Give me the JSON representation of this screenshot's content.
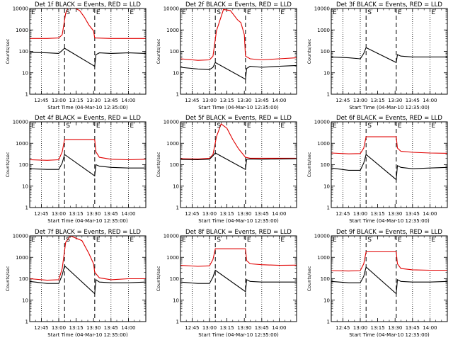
{
  "figure": {
    "colors": {
      "events": "#000000",
      "lld": "#e00000",
      "frame": "#000000",
      "background": "#ffffff"
    }
  },
  "chart_data": [
    {
      "type": "line",
      "title": "Det 1f BLACK = Events, RED = LLD",
      "xlabel": "Start Time (04-Mar-10 12:35:00)",
      "ylabel": "Counts/sec",
      "xlim": [
        "12:35",
        "14:15"
      ],
      "ylim": [
        1,
        10000
      ],
      "yscale": "log",
      "xticks": [
        "12:45",
        "13:00",
        "13:15",
        "13:30",
        "13:45",
        "14:00"
      ],
      "yticks": [
        "1",
        "10",
        "100",
        "1000",
        "10000"
      ],
      "dotted_lines": [
        "12:45",
        "13:00",
        "13:45",
        "14:00"
      ],
      "dashed_lines": [
        "13:05",
        "13:31"
      ],
      "markers": [
        {
          "text": "E",
          "x": "12:35"
        },
        {
          "text": "S",
          "x": "13:05"
        },
        {
          "text": "E",
          "x": "13:31"
        },
        {
          "text": "E",
          "x": "14:00"
        }
      ],
      "series": [
        {
          "color": "red",
          "x": [
            "12:35",
            "12:50",
            "13:00",
            "13:03",
            "13:06",
            "13:08",
            "13:13",
            "13:18",
            "13:22",
            "13:26",
            "13:30",
            "13:31",
            "13:45",
            "14:00",
            "14:15"
          ],
          "y": [
            400,
            400,
            420,
            600,
            6000,
            11000,
            11000,
            8000,
            4000,
            1700,
            900,
            420,
            400,
            400,
            400
          ]
        },
        {
          "color": "black",
          "x": [
            "12:35",
            "12:50",
            "13:00",
            "13:03",
            "13:05",
            "13:31",
            "13:32",
            "13:35",
            "13:45",
            "14:00",
            "14:15"
          ],
          "y": [
            90,
            85,
            80,
            110,
            140,
            20,
            70,
            85,
            80,
            85,
            80
          ]
        }
      ]
    },
    {
      "type": "line",
      "title": "Det 2f BLACK = Events, RED = LLD",
      "xlabel": "Start Time (04-Mar-10 12:35:00)",
      "ylabel": "Counts/sec",
      "xlim": [
        "12:35",
        "14:15"
      ],
      "ylim": [
        1,
        10000
      ],
      "yscale": "log",
      "xticks": [
        "12:45",
        "13:00",
        "13:15",
        "13:30",
        "13:45",
        "14:00"
      ],
      "yticks": [
        "1",
        "10",
        "100",
        "1000",
        "10000"
      ],
      "dotted_lines": [
        "12:45",
        "13:00",
        "13:45",
        "14:00"
      ],
      "dashed_lines": [
        "13:05",
        "13:31"
      ],
      "markers": [
        {
          "text": "E",
          "x": "12:35"
        },
        {
          "text": "S",
          "x": "13:05"
        },
        {
          "text": "E",
          "x": "13:31"
        },
        {
          "text": "E",
          "x": "14:00"
        }
      ],
      "series": [
        {
          "color": "red",
          "x": [
            "12:35",
            "12:50",
            "13:00",
            "13:03",
            "13:06",
            "13:12",
            "13:18",
            "13:24",
            "13:27",
            "13:30",
            "13:31",
            "13:35",
            "13:45",
            "14:00",
            "14:15"
          ],
          "y": [
            45,
            38,
            40,
            60,
            900,
            9000,
            8000,
            3000,
            2200,
            600,
            60,
            45,
            40,
            45,
            50
          ]
        },
        {
          "color": "black",
          "x": [
            "12:35",
            "12:50",
            "13:00",
            "13:03",
            "13:05",
            "13:31",
            "13:32",
            "13:35",
            "13:45",
            "14:00",
            "14:15"
          ],
          "y": [
            18,
            15,
            14,
            18,
            30,
            5,
            16,
            20,
            18,
            20,
            22
          ]
        }
      ]
    },
    {
      "type": "line",
      "title": "Det 3f BLACK = Events, RED = LLD",
      "xlabel": "Start Time (04-Mar-10 12:35:00)",
      "ylabel": "Counts/sec",
      "xlim": [
        "12:35",
        "14:15"
      ],
      "ylim": [
        1,
        10000
      ],
      "yscale": "log",
      "xticks": [
        "12:45",
        "13:00",
        "13:15",
        "13:30",
        "13:45",
        "14:00"
      ],
      "yticks": [
        "1",
        "10",
        "100",
        "1000",
        "10000"
      ],
      "dotted_lines": [
        "12:45",
        "13:00",
        "13:45",
        "14:00"
      ],
      "dashed_lines": [
        "13:05",
        "13:31"
      ],
      "markers": [
        {
          "text": "E",
          "x": "12:35"
        },
        {
          "text": "S",
          "x": "13:05"
        },
        {
          "text": "E",
          "x": "13:31"
        },
        {
          "text": "E",
          "x": "14:00"
        }
      ],
      "series": [
        {
          "color": "black",
          "x": [
            "12:35",
            "12:50",
            "13:00",
            "13:03",
            "13:05",
            "13:31",
            "13:32",
            "13:35",
            "13:45",
            "14:00",
            "14:15"
          ],
          "y": [
            55,
            50,
            45,
            80,
            150,
            30,
            70,
            60,
            55,
            55,
            55
          ]
        }
      ]
    },
    {
      "type": "line",
      "title": "Det 4f BLACK = Events, RED = LLD",
      "xlabel": "Start Time (04-Mar-10 12:35:00)",
      "ylabel": "Counts/sec",
      "xlim": [
        "12:35",
        "14:15"
      ],
      "ylim": [
        1,
        10000
      ],
      "yscale": "log",
      "xticks": [
        "12:45",
        "13:00",
        "13:15",
        "13:30",
        "13:45",
        "14:00"
      ],
      "yticks": [
        "1",
        "10",
        "100",
        "1000",
        "10000"
      ],
      "dotted_lines": [
        "12:45",
        "13:00",
        "13:45",
        "14:00"
      ],
      "dashed_lines": [
        "13:05",
        "13:31"
      ],
      "markers": [
        {
          "text": "E",
          "x": "12:35"
        },
        {
          "text": "S",
          "x": "13:05"
        },
        {
          "text": "E",
          "x": "13:31"
        },
        {
          "text": "E",
          "x": "14:00"
        }
      ],
      "series": [
        {
          "color": "red",
          "x": [
            "12:35",
            "12:50",
            "13:00",
            "13:03",
            "13:05",
            "13:31",
            "13:32",
            "13:35",
            "13:45",
            "14:00",
            "14:15"
          ],
          "y": [
            170,
            160,
            170,
            400,
            1500,
            1500,
            400,
            220,
            180,
            170,
            180
          ]
        },
        {
          "color": "black",
          "x": [
            "12:35",
            "12:50",
            "13:00",
            "13:03",
            "13:05",
            "13:31",
            "13:32",
            "13:35",
            "13:45",
            "14:00",
            "14:15"
          ],
          "y": [
            65,
            60,
            60,
            120,
            300,
            30,
            100,
            85,
            75,
            70,
            70
          ]
        }
      ]
    },
    {
      "type": "line",
      "title": "Det 5f BLACK = Events, RED = LLD",
      "xlabel": "Start Time (04-Mar-10 12:35:00)",
      "ylabel": "Counts/sec",
      "xlim": [
        "12:35",
        "14:15"
      ],
      "ylim": [
        1,
        10000
      ],
      "yscale": "log",
      "xticks": [
        "12:45",
        "13:00",
        "13:15",
        "13:30",
        "13:45",
        "14:00"
      ],
      "yticks": [
        "1",
        "10",
        "100",
        "1000",
        "10000"
      ],
      "dotted_lines": [
        "12:45",
        "13:00",
        "13:45",
        "14:00"
      ],
      "dashed_lines": [
        "13:05",
        "13:31"
      ],
      "markers": [
        {
          "text": "E",
          "x": "12:35"
        },
        {
          "text": "S",
          "x": "13:05"
        },
        {
          "text": "E",
          "x": "13:31"
        },
        {
          "text": "E",
          "x": "14:00"
        }
      ],
      "series": [
        {
          "color": "red",
          "x": [
            "12:35",
            "12:50",
            "13:00",
            "13:03",
            "13:06",
            "13:10",
            "13:15",
            "13:20",
            "13:25",
            "13:29",
            "13:31",
            "13:35",
            "13:45",
            "14:00",
            "14:15"
          ],
          "y": [
            190,
            185,
            200,
            300,
            2000,
            8000,
            5000,
            1500,
            550,
            300,
            220,
            200,
            200,
            200,
            200
          ]
        },
        {
          "color": "black",
          "x": [
            "12:35",
            "12:50",
            "13:00",
            "13:03",
            "13:05",
            "13:31",
            "13:32",
            "13:35",
            "13:45",
            "14:00",
            "14:15"
          ],
          "y": [
            175,
            170,
            180,
            260,
            350,
            60,
            180,
            185,
            180,
            185,
            190
          ]
        }
      ]
    },
    {
      "type": "line",
      "title": "Det 6f BLACK = Events, RED = LLD",
      "xlabel": "Start Time (04-Mar-10 12:35:00)",
      "ylabel": "Counts/sec",
      "xlim": [
        "12:35",
        "14:15"
      ],
      "ylim": [
        1,
        10000
      ],
      "yscale": "log",
      "xticks": [
        "12:45",
        "13:00",
        "13:15",
        "13:30",
        "13:45",
        "14:00"
      ],
      "yticks": [
        "1",
        "10",
        "100",
        "1000",
        "10000"
      ],
      "dotted_lines": [
        "12:45",
        "13:00",
        "13:45",
        "14:00"
      ],
      "dashed_lines": [
        "13:05",
        "13:31"
      ],
      "markers": [
        {
          "text": "E",
          "x": "12:35"
        },
        {
          "text": "S",
          "x": "13:05"
        },
        {
          "text": "E",
          "x": "13:31"
        },
        {
          "text": "E",
          "x": "14:00"
        }
      ],
      "series": [
        {
          "color": "red",
          "x": [
            "12:35",
            "12:50",
            "13:00",
            "13:03",
            "13:05",
            "13:31",
            "13:32",
            "13:35",
            "13:45",
            "14:00",
            "14:15"
          ],
          "y": [
            350,
            320,
            330,
            600,
            2000,
            2000,
            600,
            420,
            380,
            350,
            340
          ]
        },
        {
          "color": "black",
          "x": [
            "12:35",
            "12:50",
            "13:00",
            "13:03",
            "13:05",
            "13:31",
            "13:32",
            "13:35",
            "13:45",
            "14:00",
            "14:15"
          ],
          "y": [
            70,
            55,
            55,
            120,
            300,
            20,
            90,
            75,
            65,
            70,
            75
          ]
        }
      ]
    },
    {
      "type": "line",
      "title": "Det 7f BLACK = Events, RED = LLD",
      "xlabel": "Start Time (04-Mar-10 12:35:00)",
      "ylabel": "Counts/sec",
      "xlim": [
        "12:35",
        "14:15"
      ],
      "ylim": [
        1,
        10000
      ],
      "yscale": "log",
      "xticks": [
        "12:45",
        "13:00",
        "13:15",
        "13:30",
        "13:45",
        "14:00"
      ],
      "yticks": [
        "1",
        "10",
        "100",
        "1000",
        "10000"
      ],
      "dotted_lines": [
        "12:45",
        "13:00",
        "13:45",
        "14:00"
      ],
      "dashed_lines": [
        "13:05",
        "13:31"
      ],
      "markers": [
        {
          "text": "E",
          "x": "12:35"
        },
        {
          "text": "S",
          "x": "13:05"
        },
        {
          "text": "E",
          "x": "13:31"
        },
        {
          "text": "E",
          "x": "14:00"
        }
      ],
      "series": [
        {
          "color": "red",
          "x": [
            "12:35",
            "12:50",
            "13:00",
            "13:03",
            "13:06",
            "13:10",
            "13:20",
            "13:26",
            "13:30",
            "13:31",
            "13:35",
            "13:45",
            "14:00",
            "14:15"
          ],
          "y": [
            100,
            85,
            90,
            300,
            5000,
            10000,
            6000,
            1500,
            500,
            200,
            110,
            90,
            100,
            100
          ]
        },
        {
          "color": "black",
          "x": [
            "12:35",
            "12:50",
            "13:00",
            "13:03",
            "13:05",
            "13:31",
            "13:32",
            "13:35",
            "13:45",
            "14:00",
            "14:15"
          ],
          "y": [
            75,
            60,
            60,
            150,
            400,
            20,
            90,
            70,
            65,
            65,
            70
          ]
        }
      ]
    },
    {
      "type": "line",
      "title": "Det 8f BLACK = Events, RED = LLD",
      "xlabel": "Start Time (04-Mar-10 12:35:00)",
      "ylabel": "Counts/sec",
      "xlim": [
        "12:35",
        "14:15"
      ],
      "ylim": [
        1,
        10000
      ],
      "yscale": "log",
      "xticks": [
        "12:45",
        "13:00",
        "13:15",
        "13:30",
        "13:45",
        "14:00"
      ],
      "yticks": [
        "1",
        "10",
        "100",
        "1000",
        "10000"
      ],
      "dotted_lines": [
        "12:45",
        "13:00",
        "13:45",
        "14:00"
      ],
      "dashed_lines": [
        "13:05",
        "13:31"
      ],
      "markers": [
        {
          "text": "E",
          "x": "12:35"
        },
        {
          "text": "S",
          "x": "13:05"
        },
        {
          "text": "E",
          "x": "13:31"
        },
        {
          "text": "E",
          "x": "14:00"
        }
      ],
      "series": [
        {
          "color": "red",
          "x": [
            "12:35",
            "12:50",
            "13:00",
            "13:03",
            "13:05",
            "13:31",
            "13:32",
            "13:35",
            "13:45",
            "14:00",
            "14:15"
          ],
          "y": [
            420,
            380,
            400,
            800,
            2500,
            2500,
            700,
            500,
            450,
            420,
            430
          ]
        },
        {
          "color": "black",
          "x": [
            "12:35",
            "12:50",
            "13:00",
            "13:03",
            "13:05",
            "13:31",
            "13:32",
            "13:35",
            "13:45",
            "14:00",
            "14:15"
          ],
          "y": [
            70,
            60,
            60,
            120,
            250,
            25,
            90,
            75,
            70,
            70,
            70
          ]
        }
      ]
    },
    {
      "type": "line",
      "title": "Det 9f BLACK = Events, RED = LLD",
      "xlabel": "Start Time (04-Mar-10 12:35:00)",
      "ylabel": "Counts/sec",
      "xlim": [
        "12:35",
        "14:15"
      ],
      "ylim": [
        1,
        10000
      ],
      "yscale": "log",
      "xticks": [
        "12:45",
        "13:00",
        "13:15",
        "13:30",
        "13:45",
        "14:00"
      ],
      "yticks": [
        "1",
        "10",
        "100",
        "1000",
        "10000"
      ],
      "dotted_lines": [
        "12:45",
        "13:00",
        "13:45",
        "14:00"
      ],
      "dashed_lines": [
        "13:05",
        "13:31"
      ],
      "markers": [
        {
          "text": "E",
          "x": "12:35"
        },
        {
          "text": "S",
          "x": "13:05"
        },
        {
          "text": "E",
          "x": "13:31"
        },
        {
          "text": "E",
          "x": "14:00"
        }
      ],
      "series": [
        {
          "color": "red",
          "x": [
            "12:35",
            "12:50",
            "13:00",
            "13:03",
            "13:05",
            "13:31",
            "13:32",
            "13:35",
            "13:45",
            "14:00",
            "14:15"
          ],
          "y": [
            240,
            230,
            240,
            500,
            1800,
            1800,
            500,
            300,
            260,
            250,
            250
          ]
        },
        {
          "color": "black",
          "x": [
            "12:35",
            "12:50",
            "13:00",
            "13:03",
            "13:05",
            "13:31",
            "13:32",
            "13:35",
            "13:45",
            "14:00",
            "14:15"
          ],
          "y": [
            75,
            65,
            65,
            130,
            350,
            20,
            90,
            75,
            70,
            70,
            75
          ]
        }
      ]
    }
  ]
}
